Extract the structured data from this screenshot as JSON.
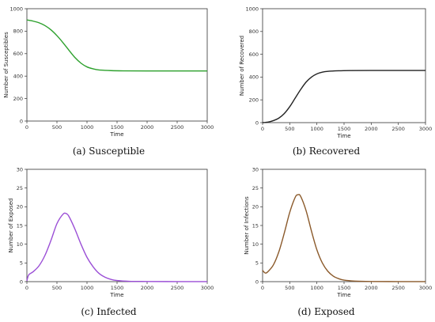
{
  "chart_data": [
    {
      "type": "line",
      "caption": "(a)  Susceptible",
      "xlabel": "Time",
      "ylabel": "Number of Susceptibles",
      "xlim": [
        0,
        3000
      ],
      "ylim": [
        0,
        1000
      ],
      "xticks": [
        0,
        500,
        1000,
        1500,
        2000,
        2500,
        3000
      ],
      "yticks": [
        0,
        200,
        400,
        600,
        800,
        1000
      ],
      "grid": false,
      "series": [
        {
          "color": "#2ca02c",
          "x": [
            0,
            100,
            200,
            300,
            400,
            500,
            600,
            700,
            800,
            900,
            1000,
            1100,
            1200,
            1400,
            1600,
            2000,
            2500,
            3000
          ],
          "y": [
            900,
            890,
            875,
            850,
            812,
            760,
            698,
            630,
            565,
            515,
            482,
            465,
            455,
            449,
            447,
            446,
            446,
            446
          ]
        }
      ]
    },
    {
      "type": "line",
      "caption": "(b)  Recovered",
      "xlabel": "Time",
      "ylabel": "Number of Recovered",
      "xlim": [
        0,
        3000
      ],
      "ylim": [
        0,
        1000
      ],
      "xticks": [
        0,
        500,
        1000,
        1500,
        2000,
        2500,
        3000
      ],
      "yticks": [
        0,
        200,
        400,
        600,
        800,
        1000
      ],
      "grid": false,
      "series": [
        {
          "color": "#222222",
          "x": [
            0,
            100,
            200,
            300,
            400,
            500,
            600,
            700,
            800,
            900,
            1000,
            1100,
            1200,
            1400,
            1600,
            2000,
            2500,
            3000
          ],
          "y": [
            0,
            5,
            18,
            40,
            80,
            140,
            215,
            290,
            355,
            400,
            428,
            443,
            450,
            455,
            457,
            458,
            458,
            458
          ]
        }
      ]
    },
    {
      "type": "line",
      "caption": "(c)  Infected",
      "xlabel": "Time",
      "ylabel": "Number of Exposed",
      "xlim": [
        0,
        3000
      ],
      "ylim": [
        0,
        30
      ],
      "xticks": [
        0,
        500,
        1000,
        1500,
        2000,
        2500,
        3000
      ],
      "yticks": [
        0,
        5,
        10,
        15,
        20,
        25,
        30
      ],
      "grid": false,
      "series": [
        {
          "color": "#9b4fd6",
          "x": [
            0,
            30,
            100,
            200,
            300,
            400,
            500,
            600,
            650,
            700,
            800,
            900,
            1000,
            1100,
            1200,
            1300,
            1400,
            1500,
            1700,
            2000,
            2500,
            3000
          ],
          "y": [
            0.2,
            1.8,
            2.6,
            4.2,
            7.0,
            11.0,
            15.5,
            18.0,
            18.2,
            17.4,
            14.0,
            10.0,
            6.5,
            4.0,
            2.2,
            1.2,
            0.6,
            0.3,
            0.1,
            0.05,
            0.02,
            0.01
          ]
        }
      ]
    },
    {
      "type": "line",
      "caption": "(d)  Exposed",
      "xlabel": "Time",
      "ylabel": "Number of Infections",
      "xlim": [
        0,
        3000
      ],
      "ylim": [
        0,
        30
      ],
      "xticks": [
        0,
        500,
        1000,
        1500,
        2000,
        2500,
        3000
      ],
      "yticks": [
        0,
        5,
        10,
        15,
        20,
        25,
        30
      ],
      "grid": false,
      "series": [
        {
          "color": "#8b5a2b",
          "x": [
            0,
            50,
            100,
            200,
            300,
            400,
            500,
            600,
            650,
            700,
            800,
            900,
            1000,
            1100,
            1200,
            1300,
            1400,
            1500,
            1700,
            2000,
            2500,
            3000
          ],
          "y": [
            3.0,
            2.3,
            2.7,
            4.5,
            8.0,
            13.0,
            18.5,
            22.5,
            23.2,
            22.8,
            19.0,
            13.5,
            8.5,
            5.0,
            2.8,
            1.5,
            0.8,
            0.4,
            0.15,
            0.05,
            0.02,
            0.01
          ]
        }
      ]
    }
  ]
}
